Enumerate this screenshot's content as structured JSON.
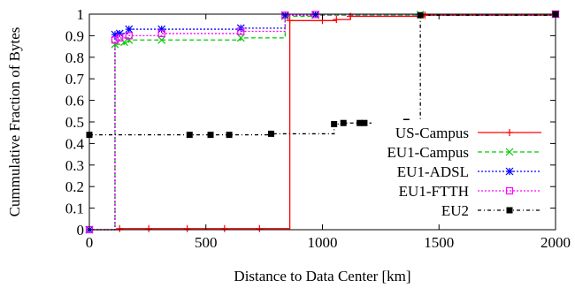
{
  "chart_data": {
    "type": "line",
    "title": "",
    "xlabel": "Distance to Data Center [km]",
    "ylabel": "Cummulative Fraction of Bytes",
    "xlim": [
      0,
      2000
    ],
    "ylim": [
      0,
      1
    ],
    "x_ticks": [
      0,
      500,
      1000,
      1500,
      2000
    ],
    "y_ticks": [
      0,
      0.1,
      0.2,
      0.3,
      0.4,
      0.5,
      0.6,
      0.7,
      0.8,
      0.9,
      1
    ],
    "grid": false,
    "legend_position": "bottom-right",
    "step": true,
    "series": [
      {
        "name": "US-Campus",
        "color": "#ff0000",
        "dash": "solid",
        "marker": "plus",
        "x": [
          0,
          130,
          255,
          420,
          580,
          730,
          860,
          1000,
          1060,
          1120,
          1440,
          2000
        ],
        "y": [
          0,
          0.005,
          0.005,
          0.005,
          0.005,
          0.005,
          0.97,
          0.97,
          0.975,
          0.99,
          0.995,
          1.0
        ]
      },
      {
        "name": "EU1-Campus",
        "color": "#00cc00",
        "dash": "dashed",
        "marker": "x",
        "x": [
          0,
          110,
          150,
          170,
          310,
          650,
          840,
          970,
          1420,
          2000
        ],
        "y": [
          0,
          0.86,
          0.87,
          0.88,
          0.88,
          0.89,
          0.99,
          0.995,
          0.998,
          1.0
        ]
      },
      {
        "name": "EU1-ADSL",
        "color": "#0000ff",
        "dash": "dotted",
        "marker": "star",
        "x": [
          0,
          110,
          130,
          170,
          310,
          650,
          840,
          970,
          2000
        ],
        "y": [
          0,
          0.905,
          0.91,
          0.93,
          0.93,
          0.935,
          0.995,
          0.998,
          1.0
        ]
      },
      {
        "name": "EU1-FTTH",
        "color": "#ff00ff",
        "dash": "dotted",
        "marker": "square-open",
        "x": [
          0,
          110,
          130,
          170,
          310,
          650,
          840,
          970,
          2000
        ],
        "y": [
          0,
          0.88,
          0.89,
          0.9,
          0.91,
          0.92,
          0.995,
          0.998,
          1.0
        ]
      },
      {
        "name": "EU2",
        "color": "#000000",
        "dash": "dashdot",
        "marker": "square-filled",
        "x": [
          0,
          430,
          520,
          600,
          780,
          1050,
          1090,
          1160,
          1180,
          1360,
          1420,
          2000
        ],
        "y": [
          0.44,
          0.44,
          0.44,
          0.44,
          0.445,
          0.49,
          0.495,
          0.495,
          0.495,
          0.5,
          0.995,
          1.0
        ]
      }
    ]
  }
}
